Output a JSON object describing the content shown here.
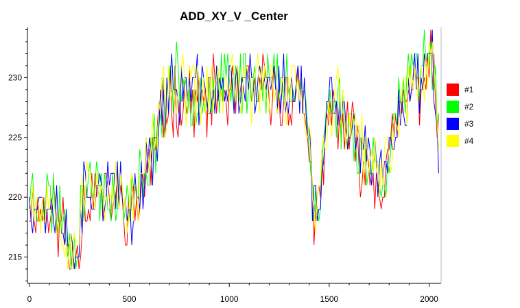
{
  "chart_data": {
    "type": "line",
    "title": "ADD_XY_V _Center",
    "xlabel": "",
    "ylabel": "",
    "xlim": [
      -10,
      2060
    ],
    "ylim": [
      212.8,
      234.2
    ],
    "x_ticks": [
      0,
      500,
      1000,
      1500,
      2000
    ],
    "x_tick_labels": [
      "0",
      "500",
      "1000",
      "1500",
      "2000"
    ],
    "y_ticks": [
      215,
      220,
      225,
      230
    ],
    "y_tick_labels": [
      "215",
      "220",
      "225",
      "230"
    ],
    "legend_position": "right",
    "grid": false,
    "x_step": 8,
    "base_trend": [
      [
        0,
        220.5
      ],
      [
        40,
        219.5
      ],
      [
        80,
        219.5
      ],
      [
        120,
        219.5
      ],
      [
        160,
        218.5
      ],
      [
        200,
        216
      ],
      [
        240,
        216.5
      ],
      [
        270,
        220
      ],
      [
        320,
        221
      ],
      [
        380,
        220.5
      ],
      [
        420,
        220.5
      ],
      [
        470,
        219.5
      ],
      [
        520,
        219
      ],
      [
        570,
        222
      ],
      [
        620,
        224
      ],
      [
        660,
        227
      ],
      [
        700,
        229
      ],
      [
        760,
        229
      ],
      [
        820,
        228.5
      ],
      [
        880,
        228.5
      ],
      [
        940,
        229
      ],
      [
        1000,
        229
      ],
      [
        1060,
        229.5
      ],
      [
        1120,
        229
      ],
      [
        1180,
        229.5
      ],
      [
        1240,
        229
      ],
      [
        1300,
        229
      ],
      [
        1340,
        230
      ],
      [
        1380,
        228
      ],
      [
        1400,
        225
      ],
      [
        1420,
        219
      ],
      [
        1450,
        218
      ],
      [
        1470,
        224
      ],
      [
        1500,
        227.5
      ],
      [
        1540,
        228
      ],
      [
        1580,
        226
      ],
      [
        1620,
        225.5
      ],
      [
        1660,
        223.5
      ],
      [
        1720,
        222.5
      ],
      [
        1760,
        221.5
      ],
      [
        1800,
        223.5
      ],
      [
        1840,
        227
      ],
      [
        1880,
        228.5
      ],
      [
        1920,
        229.5
      ],
      [
        1960,
        230
      ],
      [
        1990,
        231.5
      ],
      [
        2010,
        232
      ],
      [
        2030,
        230
      ],
      [
        2040,
        227
      ],
      [
        2050,
        225
      ]
    ],
    "series": [
      {
        "name": "#1",
        "color": "#ff0000",
        "seed": 11,
        "offset": -0.6
      },
      {
        "name": "#2",
        "color": "#00ff00",
        "seed": 23,
        "offset": 0.3
      },
      {
        "name": "#3",
        "color": "#0000ff",
        "seed": 37,
        "offset": 0.0
      },
      {
        "name": "#4",
        "color": "#ffff00",
        "seed": 53,
        "offset": 0.1
      }
    ],
    "colors": {
      "axis": "#000000",
      "background": "#ffffff"
    }
  }
}
